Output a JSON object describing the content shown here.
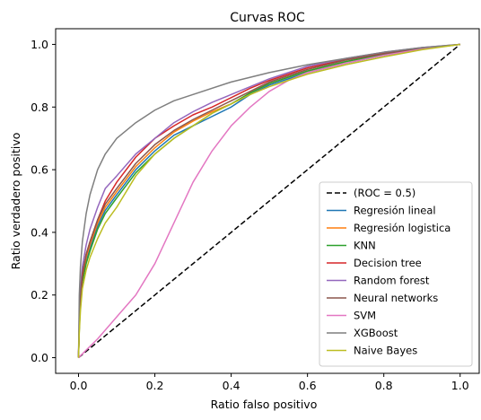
{
  "chart_data": {
    "type": "line",
    "title": "Curvas ROC",
    "xlabel": "Ratio falso positivo",
    "ylabel": "Ratio verdadero positivo",
    "xlim": [
      -0.06,
      1.05
    ],
    "ylim": [
      -0.05,
      1.05
    ],
    "xticks": [
      0.0,
      0.2,
      0.4,
      0.6,
      0.8,
      1.0
    ],
    "yticks": [
      0.0,
      0.2,
      0.4,
      0.6,
      0.8,
      1.0
    ],
    "grid": false,
    "legend_position": "lower-right",
    "series": [
      {
        "name": "(ROC = 0.5)",
        "color": "#000000",
        "dash": true,
        "x": [
          0,
          1
        ],
        "y": [
          0,
          1
        ]
      },
      {
        "name": "Regresión lineal",
        "color": "#1f77b4",
        "x": [
          0,
          0.002,
          0.005,
          0.01,
          0.02,
          0.03,
          0.05,
          0.07,
          0.1,
          0.15,
          0.2,
          0.25,
          0.3,
          0.35,
          0.4,
          0.45,
          0.5,
          0.6,
          0.7,
          0.8,
          0.9,
          1.0
        ],
        "y": [
          0,
          0.1,
          0.18,
          0.25,
          0.31,
          0.35,
          0.42,
          0.47,
          0.52,
          0.6,
          0.66,
          0.71,
          0.74,
          0.77,
          0.8,
          0.84,
          0.87,
          0.91,
          0.94,
          0.965,
          0.985,
          1.0
        ]
      },
      {
        "name": "Regresión logistica",
        "color": "#ff7f0e",
        "x": [
          0,
          0.002,
          0.005,
          0.01,
          0.02,
          0.03,
          0.05,
          0.07,
          0.1,
          0.15,
          0.2,
          0.25,
          0.3,
          0.35,
          0.4,
          0.45,
          0.5,
          0.6,
          0.7,
          0.8,
          0.9,
          1.0
        ],
        "y": [
          0,
          0.11,
          0.19,
          0.26,
          0.32,
          0.36,
          0.43,
          0.48,
          0.53,
          0.61,
          0.67,
          0.72,
          0.755,
          0.785,
          0.81,
          0.845,
          0.875,
          0.915,
          0.945,
          0.968,
          0.986,
          1.0
        ]
      },
      {
        "name": "KNN",
        "color": "#2ca02c",
        "x": [
          0,
          0.002,
          0.005,
          0.01,
          0.02,
          0.03,
          0.05,
          0.07,
          0.1,
          0.15,
          0.2,
          0.25,
          0.3,
          0.35,
          0.4,
          0.45,
          0.5,
          0.6,
          0.7,
          0.8,
          0.9,
          1.0
        ],
        "y": [
          0,
          0.09,
          0.17,
          0.24,
          0.3,
          0.34,
          0.41,
          0.46,
          0.51,
          0.59,
          0.65,
          0.7,
          0.74,
          0.78,
          0.81,
          0.845,
          0.875,
          0.915,
          0.945,
          0.968,
          0.986,
          1.0
        ]
      },
      {
        "name": "Decision tree",
        "color": "#d62728",
        "x": [
          0,
          0.002,
          0.005,
          0.01,
          0.02,
          0.03,
          0.05,
          0.07,
          0.1,
          0.15,
          0.2,
          0.25,
          0.3,
          0.35,
          0.4,
          0.45,
          0.5,
          0.6,
          0.7,
          0.8,
          0.9,
          1.0
        ],
        "y": [
          0,
          0.1,
          0.18,
          0.26,
          0.33,
          0.37,
          0.44,
          0.5,
          0.56,
          0.64,
          0.7,
          0.74,
          0.775,
          0.8,
          0.83,
          0.86,
          0.885,
          0.925,
          0.952,
          0.972,
          0.988,
          1.0
        ]
      },
      {
        "name": "Random forest",
        "color": "#9467bd",
        "x": [
          0,
          0.002,
          0.005,
          0.01,
          0.02,
          0.03,
          0.05,
          0.07,
          0.1,
          0.15,
          0.2,
          0.25,
          0.3,
          0.35,
          0.4,
          0.45,
          0.5,
          0.6,
          0.7,
          0.8,
          0.9,
          1.0
        ],
        "y": [
          0,
          0.14,
          0.22,
          0.29,
          0.36,
          0.41,
          0.48,
          0.54,
          0.58,
          0.65,
          0.7,
          0.75,
          0.785,
          0.815,
          0.84,
          0.865,
          0.89,
          0.93,
          0.955,
          0.975,
          0.99,
          1.0
        ]
      },
      {
        "name": "Neural networks",
        "color": "#8c564b",
        "x": [
          0,
          0.002,
          0.005,
          0.01,
          0.02,
          0.03,
          0.05,
          0.07,
          0.1,
          0.15,
          0.2,
          0.25,
          0.3,
          0.35,
          0.4,
          0.45,
          0.5,
          0.6,
          0.7,
          0.8,
          0.9,
          1.0
        ],
        "y": [
          0,
          0.11,
          0.19,
          0.27,
          0.33,
          0.37,
          0.44,
          0.49,
          0.54,
          0.62,
          0.68,
          0.725,
          0.76,
          0.79,
          0.82,
          0.85,
          0.88,
          0.92,
          0.95,
          0.97,
          0.987,
          1.0
        ]
      },
      {
        "name": "SVM",
        "color": "#e377c2",
        "x": [
          0,
          0.05,
          0.1,
          0.15,
          0.2,
          0.25,
          0.3,
          0.35,
          0.4,
          0.45,
          0.5,
          0.55,
          0.6,
          0.7,
          0.8,
          0.9,
          1.0
        ],
        "y": [
          0,
          0.06,
          0.13,
          0.2,
          0.3,
          0.43,
          0.56,
          0.66,
          0.74,
          0.8,
          0.85,
          0.885,
          0.91,
          0.94,
          0.965,
          0.985,
          1.0
        ]
      },
      {
        "name": "XGBoost",
        "color": "#7f7f7f",
        "x": [
          0,
          0.002,
          0.005,
          0.01,
          0.02,
          0.03,
          0.05,
          0.07,
          0.1,
          0.15,
          0.2,
          0.25,
          0.3,
          0.4,
          0.5,
          0.6,
          0.7,
          0.8,
          0.9,
          1.0
        ],
        "y": [
          0,
          0.2,
          0.29,
          0.37,
          0.46,
          0.52,
          0.6,
          0.65,
          0.7,
          0.75,
          0.79,
          0.82,
          0.84,
          0.88,
          0.91,
          0.935,
          0.955,
          0.975,
          0.99,
          1.0
        ]
      },
      {
        "name": "Naive Bayes",
        "color": "#bcbd22",
        "x": [
          0,
          0.002,
          0.005,
          0.01,
          0.02,
          0.03,
          0.05,
          0.07,
          0.1,
          0.15,
          0.2,
          0.25,
          0.3,
          0.35,
          0.4,
          0.45,
          0.5,
          0.6,
          0.7,
          0.8,
          0.9,
          1.0
        ],
        "y": [
          0,
          0.08,
          0.15,
          0.22,
          0.28,
          0.32,
          0.38,
          0.43,
          0.48,
          0.58,
          0.65,
          0.7,
          0.74,
          0.78,
          0.81,
          0.84,
          0.865,
          0.905,
          0.935,
          0.96,
          0.983,
          1.0
        ]
      }
    ]
  }
}
